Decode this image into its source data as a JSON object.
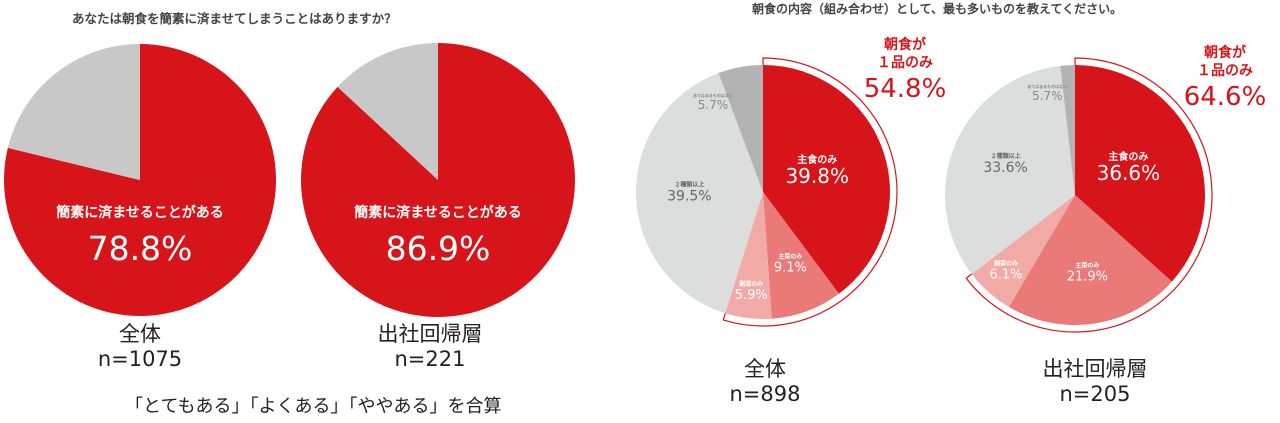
{
  "left_title": "あなたは朝食を簡素に済ませてしまうことはありますか？",
  "right_title": "朝食の内容（組み合わせ）として、最も多いものを教えてください。",
  "left_note": "「とてもある」「よくある」「ややある」を合算",
  "colors": {
    "red": "#d7141a",
    "main_dish": "#e97a78",
    "side_dish": "#f2aaa6",
    "two_plus": "#dcdddd",
    "other": "#b3b3b3",
    "rest": "#c8c8c8"
  },
  "chart_data": [
    {
      "type": "pie",
      "title": "あなたは朝食を簡素に済ませてしまうことはありますか？",
      "group": "全体",
      "n": "n=1075",
      "slices": [
        {
          "label": "簡素に済ませることがある",
          "value": 78.8,
          "display": "78.8%"
        },
        {
          "label": "",
          "value": 21.2
        }
      ]
    },
    {
      "type": "pie",
      "group": "出社回帰層",
      "n": "n=221",
      "slices": [
        {
          "label": "簡素に済ませることがある",
          "value": 86.9,
          "display": "86.9%"
        },
        {
          "label": "",
          "value": 13.1
        }
      ]
    },
    {
      "type": "pie",
      "title": "朝食の内容（組み合わせ）として、最も多いものを教えてください。",
      "group": "全体",
      "n": "n=898",
      "bracket_label_1": "朝食が",
      "bracket_label_2": "１品のみ",
      "bracket_value": "54.8%",
      "slices": [
        {
          "label": "主食のみ",
          "value": 39.8,
          "display": "39.8%"
        },
        {
          "label": "主菜のみ",
          "value": 9.1,
          "display": "9.1%"
        },
        {
          "label": "副菜のみ",
          "value": 5.9,
          "display": "5.9%"
        },
        {
          "label": "２種類以上",
          "value": 39.5,
          "display": "39.5%"
        },
        {
          "label": "あてはまるものはない",
          "value": 5.7,
          "display": "5.7%"
        }
      ]
    },
    {
      "type": "pie",
      "group": "出社回帰層",
      "n": "n=205",
      "bracket_label_1": "朝食が",
      "bracket_label_2": "１品のみ",
      "bracket_value": "64.6%",
      "slices": [
        {
          "label": "主食のみ",
          "value": 36.6,
          "display": "36.6%"
        },
        {
          "label": "主菜のみ",
          "value": 21.9,
          "display": "21.9%"
        },
        {
          "label": "副菜のみ",
          "value": 6.1,
          "display": "6.1%"
        },
        {
          "label": "２種類以上",
          "value": 33.6,
          "display": "33.6%"
        },
        {
          "label": "あてはまるものはない",
          "value": 5.7,
          "display": "5.7%"
        }
      ]
    }
  ]
}
